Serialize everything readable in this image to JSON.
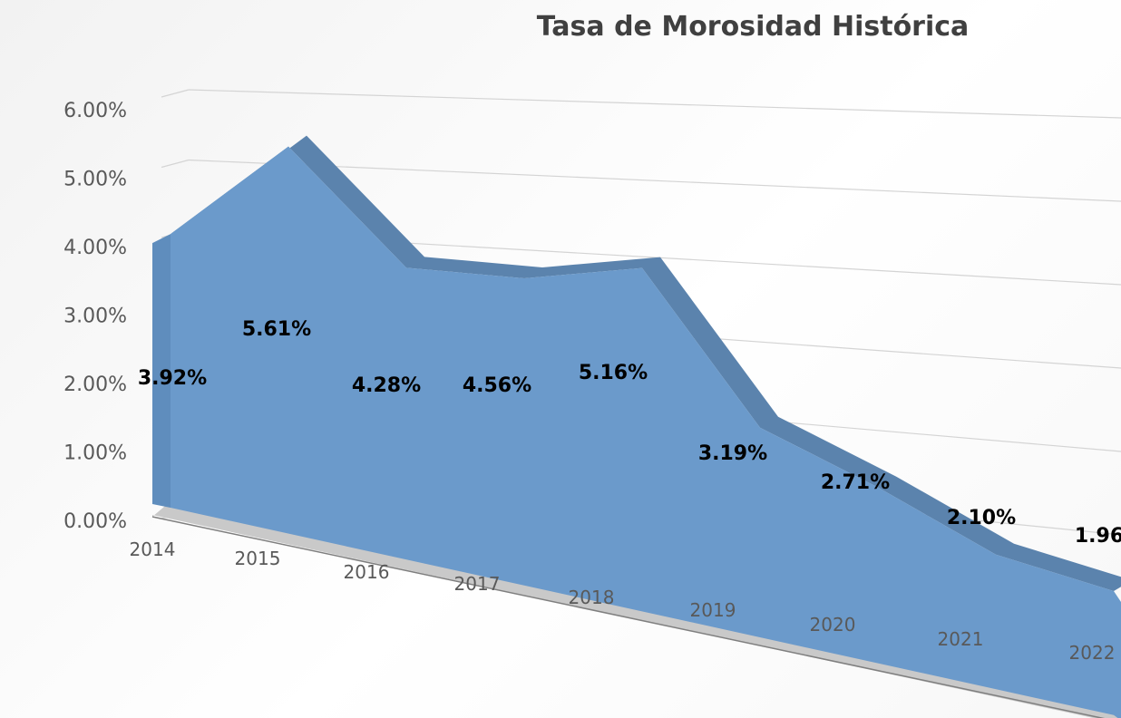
{
  "chart_data": {
    "type": "area",
    "title": "Tasa de Morosidad Histórica",
    "categories": [
      "2014",
      "2015",
      "2016",
      "2017",
      "2018",
      "2019",
      "2020",
      "2021",
      "2022"
    ],
    "values": [
      3.92,
      5.61,
      4.28,
      4.56,
      5.16,
      3.19,
      2.71,
      2.1,
      1.96
    ],
    "value_labels": [
      "3.92%",
      "5.61%",
      "4.28%",
      "4.56%",
      "5.16%",
      "3.19%",
      "2.71%",
      "2.10%",
      "1.96"
    ],
    "y_tick_labels": [
      "0.00%",
      "1.00%",
      "2.00%",
      "3.00%",
      "4.00%",
      "5.00%",
      "6.00%"
    ],
    "ylim": [
      0,
      6
    ],
    "xlabel": "",
    "ylabel": "",
    "grid": true,
    "style": "3d-area",
    "colors": {
      "area_fill": "#6b9acb",
      "area_top": "#5b83ad",
      "floor": "#c9c9c9",
      "grid": "#d4d4d4",
      "axis_text": "#595959",
      "label_text": "#000000",
      "title_text": "#404040"
    }
  }
}
